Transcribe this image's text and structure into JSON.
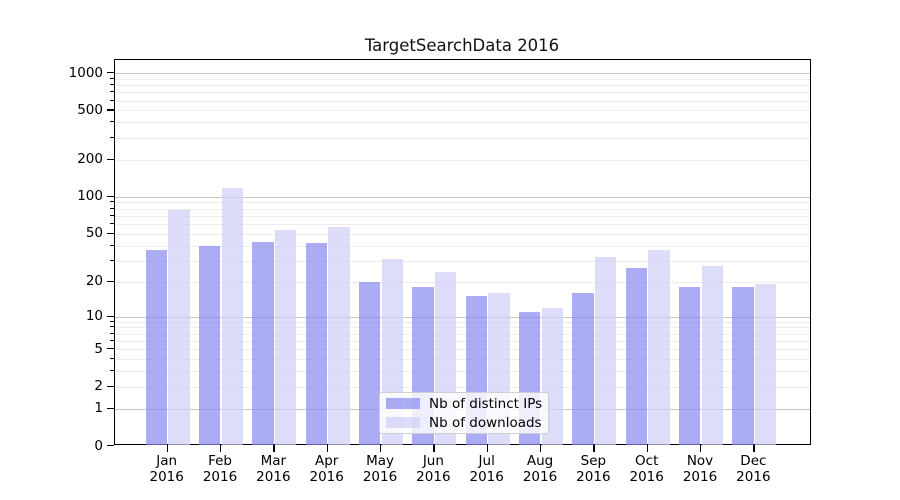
{
  "chart_data": {
    "type": "bar",
    "title": "TargetSearchData 2016",
    "months": [
      "Jan",
      "Feb",
      "Mar",
      "Apr",
      "May",
      "Jun",
      "Jul",
      "Aug",
      "Sep",
      "Oct",
      "Nov",
      "Dec"
    ],
    "year_label": "2016",
    "series": [
      {
        "name": "Nb of distinct IPs",
        "color": "rgba(137,137,240,0.7)",
        "values": [
          37,
          40,
          43,
          42,
          20,
          18,
          15,
          11,
          16,
          26,
          18,
          18
        ]
      },
      {
        "name": "Nb of downloads",
        "color": "rgba(206,206,246,0.7)",
        "values": [
          78,
          118,
          54,
          57,
          31,
          24,
          16,
          12,
          32,
          37,
          27,
          19
        ]
      }
    ],
    "y_axis": {
      "scale": "log1p",
      "labeled_ticks": [
        0,
        1,
        2,
        5,
        10,
        20,
        50,
        100,
        200,
        500,
        1000
      ],
      "minor_ticks": [
        3,
        4,
        6,
        7,
        8,
        9,
        30,
        40,
        60,
        70,
        80,
        90,
        300,
        400,
        600,
        700,
        800,
        900
      ],
      "decade_lines": [
        1,
        10,
        100,
        1000
      ],
      "ylim": [
        0,
        1273
      ]
    },
    "xlabel": "",
    "ylabel": "",
    "grid": "horizontal",
    "legend_position": "lower-center",
    "colors": {
      "major_grid": "#c6c6c6",
      "minor_grid": "#ececec",
      "spine": "#000000",
      "text": "#000000",
      "background": "#ffffff"
    }
  }
}
